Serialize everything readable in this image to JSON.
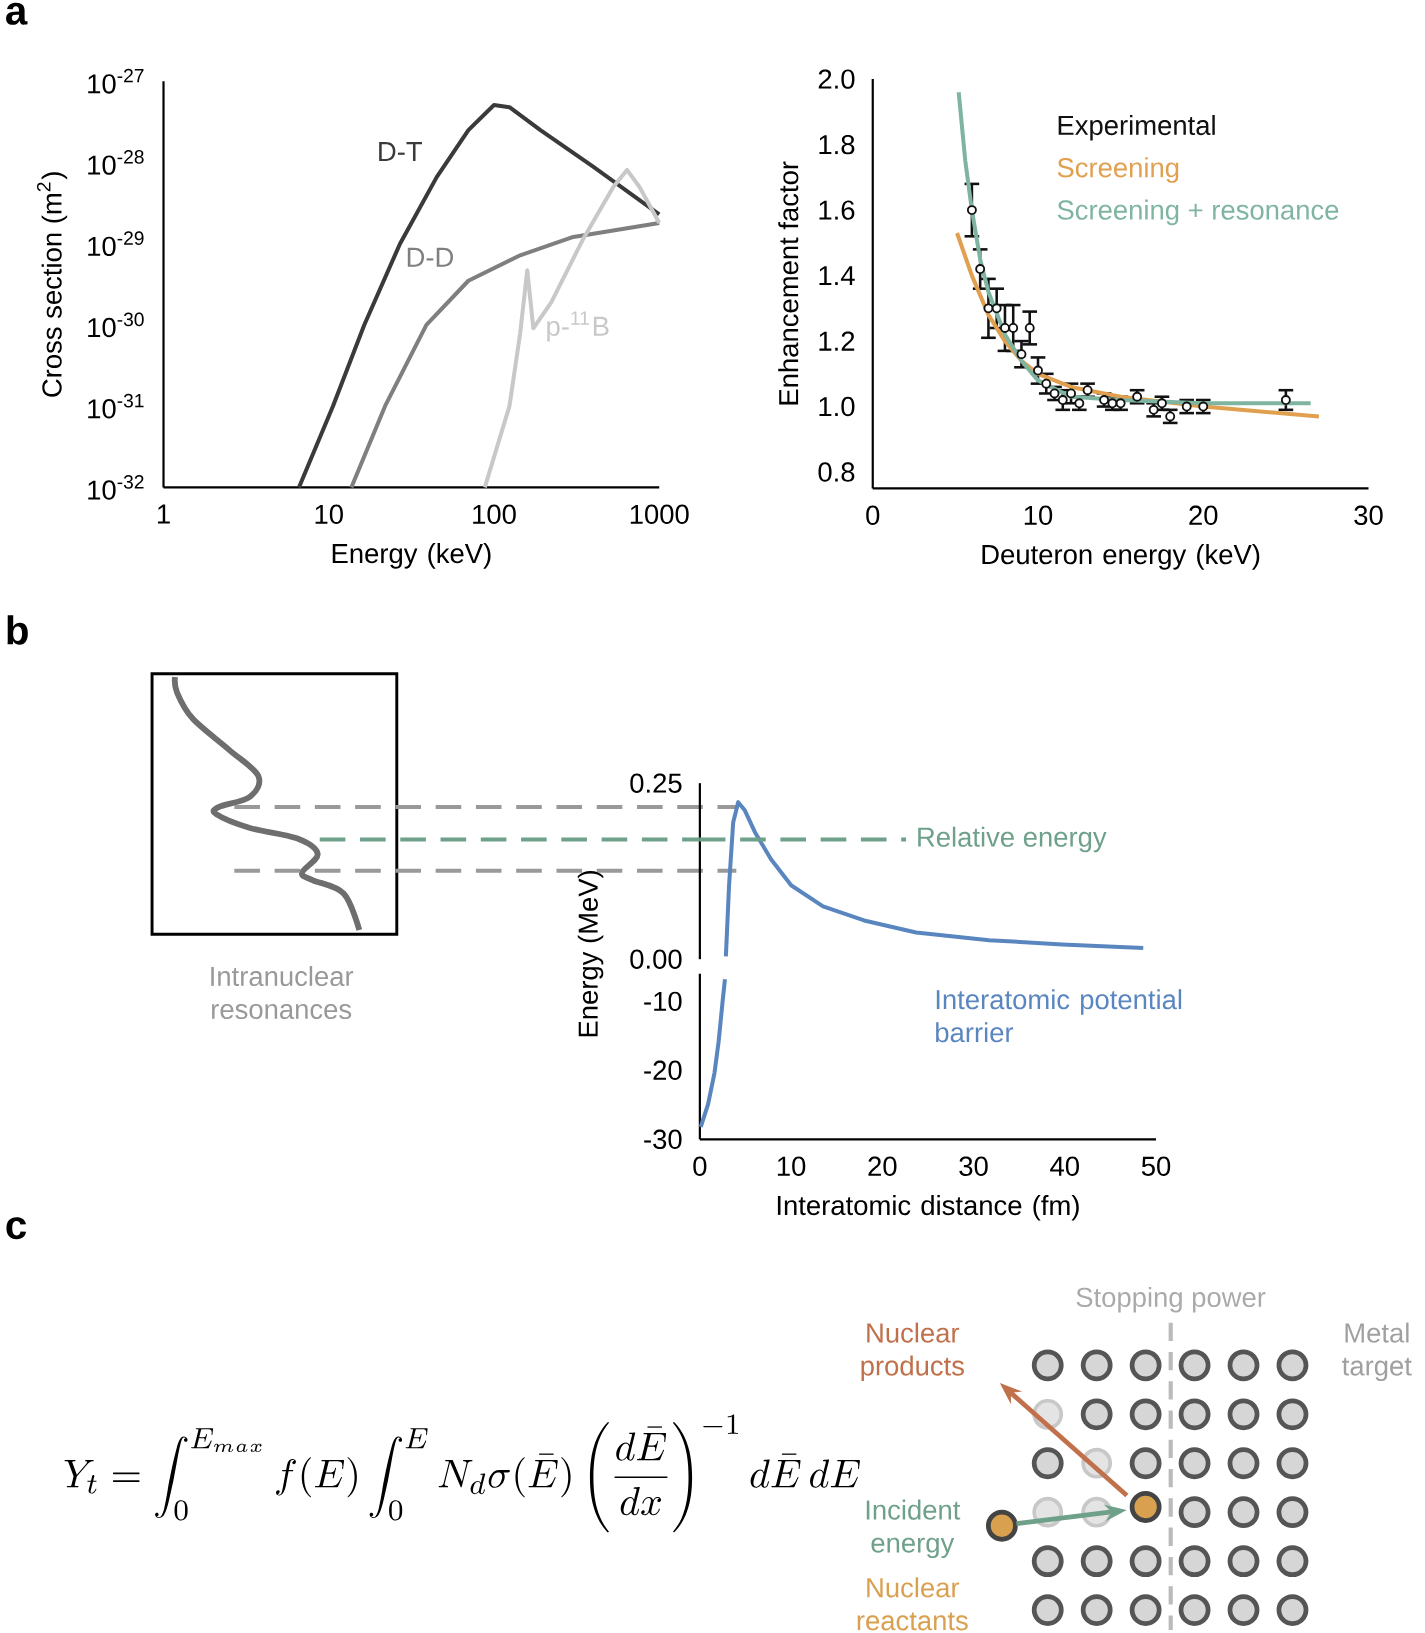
{
  "chart_data": [
    {
      "type": "line",
      "title": null,
      "xlabel": "Energy (keV)",
      "ylabel": "Cross section (m$^{2}$)",
      "log": "xy",
      "legend": false,
      "xlim": [
        1,
        1000
      ],
      "xticks": [
        1,
        10,
        100,
        1000
      ],
      "ylim": [
        1e-32,
        1e-27
      ],
      "yticks": [
        {
          "value": 1e-32,
          "label": "10$^{-32}$"
        },
        {
          "value": 1e-31,
          "label": "10$^{-31}$"
        },
        {
          "value": 1e-30,
          "label": "10$^{-30}$"
        },
        {
          "value": 1e-29,
          "label": "10$^{-29}$"
        },
        {
          "value": 1e-28,
          "label": "10$^{-28}$"
        },
        {
          "value": 1e-27,
          "label": "10$^{-27}$"
        }
      ],
      "annotations": [
        "a"
      ],
      "series": [
        {
          "name": "D-T",
          "color": "#3a3a3a",
          "x": [
            6.6,
            10.6,
            16.4,
            27,
            45,
            70,
            100,
            124,
            191,
            398,
            1000
          ],
          "values": [
            1e-32,
            1e-31,
            1e-30,
            1e-29,
            6.6e-29,
            2.5e-28,
            5.1e-28,
            4.8e-28,
            2.5e-28,
            8.9e-29,
            2.3e-29
          ]
        },
        {
          "name": "D-D",
          "color": "#7f7f7f",
          "x": [
            13.7,
            21.9,
            39,
            70,
            144,
            296,
            1000
          ],
          "values": [
            1e-32,
            1e-31,
            1e-30,
            3.5e-30,
            7.2e-30,
            1.2e-29,
            1.8e-29
          ]
        },
        {
          "name": "p-$^{11}$B",
          "color": "#c8c8c8",
          "x": [
            88,
            124,
            144,
            159,
            173,
            222,
            343,
            527,
            638,
            760,
            1000
          ],
          "values": [
            1e-32,
            1e-31,
            7.9e-31,
            4.7e-30,
            9.1e-31,
            1.9e-30,
            1.1e-29,
            5e-29,
            8.1e-29,
            5e-29,
            1.8e-29
          ]
        }
      ]
    },
    {
      "type": "scatter",
      "xlabel": "Deuteron energy (keV)",
      "ylabel": "Enhancement factor",
      "legend": "top right",
      "xlim": [
        0,
        30
      ],
      "xticks": [
        0,
        10,
        20,
        30
      ],
      "ylim": [
        0.75,
        2.0
      ],
      "yticks": [
        {
          "value": 0.8,
          "label": "0.8"
        },
        {
          "value": 1.0,
          "label": "1.0"
        },
        {
          "value": 1.2,
          "label": "1.2"
        },
        {
          "value": 1.4,
          "label": "1.4"
        },
        {
          "value": 1.6,
          "label": "1.6"
        },
        {
          "value": 1.8,
          "label": "1.8"
        },
        {
          "value": 2.0,
          "label": "2.0"
        }
      ],
      "series": [
        {
          "name": "Experimental",
          "type": "scatter",
          "marker": "circle",
          "color": "#111111",
          "x": [
            6.0,
            6.5,
            7.0,
            7.5,
            8.0,
            8.5,
            9.0,
            9.5,
            10.0,
            10.5,
            11.0,
            11.5,
            12.0,
            12.5,
            13.0,
            14.0,
            14.5,
            15.0,
            16.0,
            17.0,
            17.5,
            18.0,
            19.0,
            20.0,
            25.0
          ],
          "values": [
            1.6,
            1.42,
            1.3,
            1.3,
            1.24,
            1.24,
            1.16,
            1.24,
            1.11,
            1.07,
            1.04,
            1.02,
            1.04,
            1.01,
            1.05,
            1.02,
            1.01,
            1.01,
            1.03,
            0.99,
            1.01,
            0.97,
            1.0,
            1.0,
            1.02
          ],
          "errors": [
            0.08,
            0.06,
            0.09,
            0.06,
            0.07,
            0.07,
            0.04,
            0.05,
            0.04,
            0.03,
            0.02,
            0.03,
            0.03,
            0.02,
            0.02,
            0.02,
            0.02,
            0.02,
            0.02,
            0.02,
            0.02,
            0.02,
            0.02,
            0.02,
            0.03
          ]
        },
        {
          "name": "Screening",
          "type": "line",
          "color": "#e0a050",
          "x": [
            5.1,
            6,
            7,
            8,
            9,
            10,
            12,
            15,
            20,
            27
          ],
          "values": [
            1.53,
            1.4,
            1.28,
            1.2,
            1.14,
            1.1,
            1.06,
            1.03,
            1.0,
            0.97
          ]
        },
        {
          "name": "Screening + resonance",
          "type": "line",
          "color": "#7fb5a0",
          "x": [
            5.2,
            5.6,
            6,
            6.5,
            7,
            8,
            9,
            10,
            12,
            15,
            20,
            26.5
          ],
          "values": [
            1.96,
            1.75,
            1.6,
            1.45,
            1.35,
            1.22,
            1.14,
            1.08,
            1.03,
            1.02,
            1.01,
            1.01
          ]
        }
      ]
    },
    {
      "type": "other",
      "annotations": [
        "b",
        "Intranuclear resonances"
      ]
    },
    {
      "type": "line",
      "tick_labels": "y",
      "legend": false,
      "xlim": [
        0,
        50
      ],
      "xticks": [
        0,
        10,
        20,
        30,
        40,
        50
      ],
      "ylim": [
        0,
        0.25
      ],
      "yticks": [
        {
          "value": 0,
          "label": "0.00"
        },
        {
          "value": 0.25,
          "label": "0.25"
        }
      ],
      "ref_lines": [
        {
          "axis": "y",
          "value": 0.17,
          "label": "Relative energy",
          "color": "#6fa08a",
          "line_style": "dashed"
        }
      ],
      "series": [
        {
          "name": "Interatomic potential barrier",
          "color": "#5a86c0",
          "x": [
            2.85,
            3.2,
            3.65,
            4.2,
            4.9,
            6.05,
            7.8,
            10,
            13.5,
            18,
            23.7,
            31.7,
            39.7,
            48.6
          ],
          "values": [
            0.004,
            0.105,
            0.194,
            0.223,
            0.212,
            0.18,
            0.142,
            0.105,
            0.075,
            0.055,
            0.038,
            0.027,
            0.021,
            0.016
          ]
        }
      ]
    },
    {
      "type": "line",
      "xlabel": "Interatomic distance (fm)",
      "ylabel": "Energy (MeV)",
      "xlim": [
        0,
        50
      ],
      "xticks": [
        0,
        10,
        20,
        30,
        40,
        50
      ],
      "ylim": [
        -30,
        -6
      ],
      "yticks": [
        -30,
        -20,
        -10
      ],
      "series": [
        {
          "color": "#5a86c0",
          "x": [
            0.1,
            0.9,
            1.6,
            2.05,
            2.5,
            2.75
          ],
          "values": [
            -28.2,
            -24.9,
            -20.4,
            -15.9,
            -9.9,
            -6.8
          ]
        }
      ]
    },
    {
      "type": "other",
      "annotations": [
        "c",
        "Y_t = \\int_0^{E_{max}} f(E) \\int_0^{E} N_d \\sigma(\\bar{E}) \\left(\\frac{d\\bar{E}}{dx}\\right)^{-1} d\\bar{E}\\, dE",
        "Stopping power",
        "Nuclear products",
        "Metal target",
        "Incident energy",
        "Nuclear reactants"
      ]
    }
  ]
}
